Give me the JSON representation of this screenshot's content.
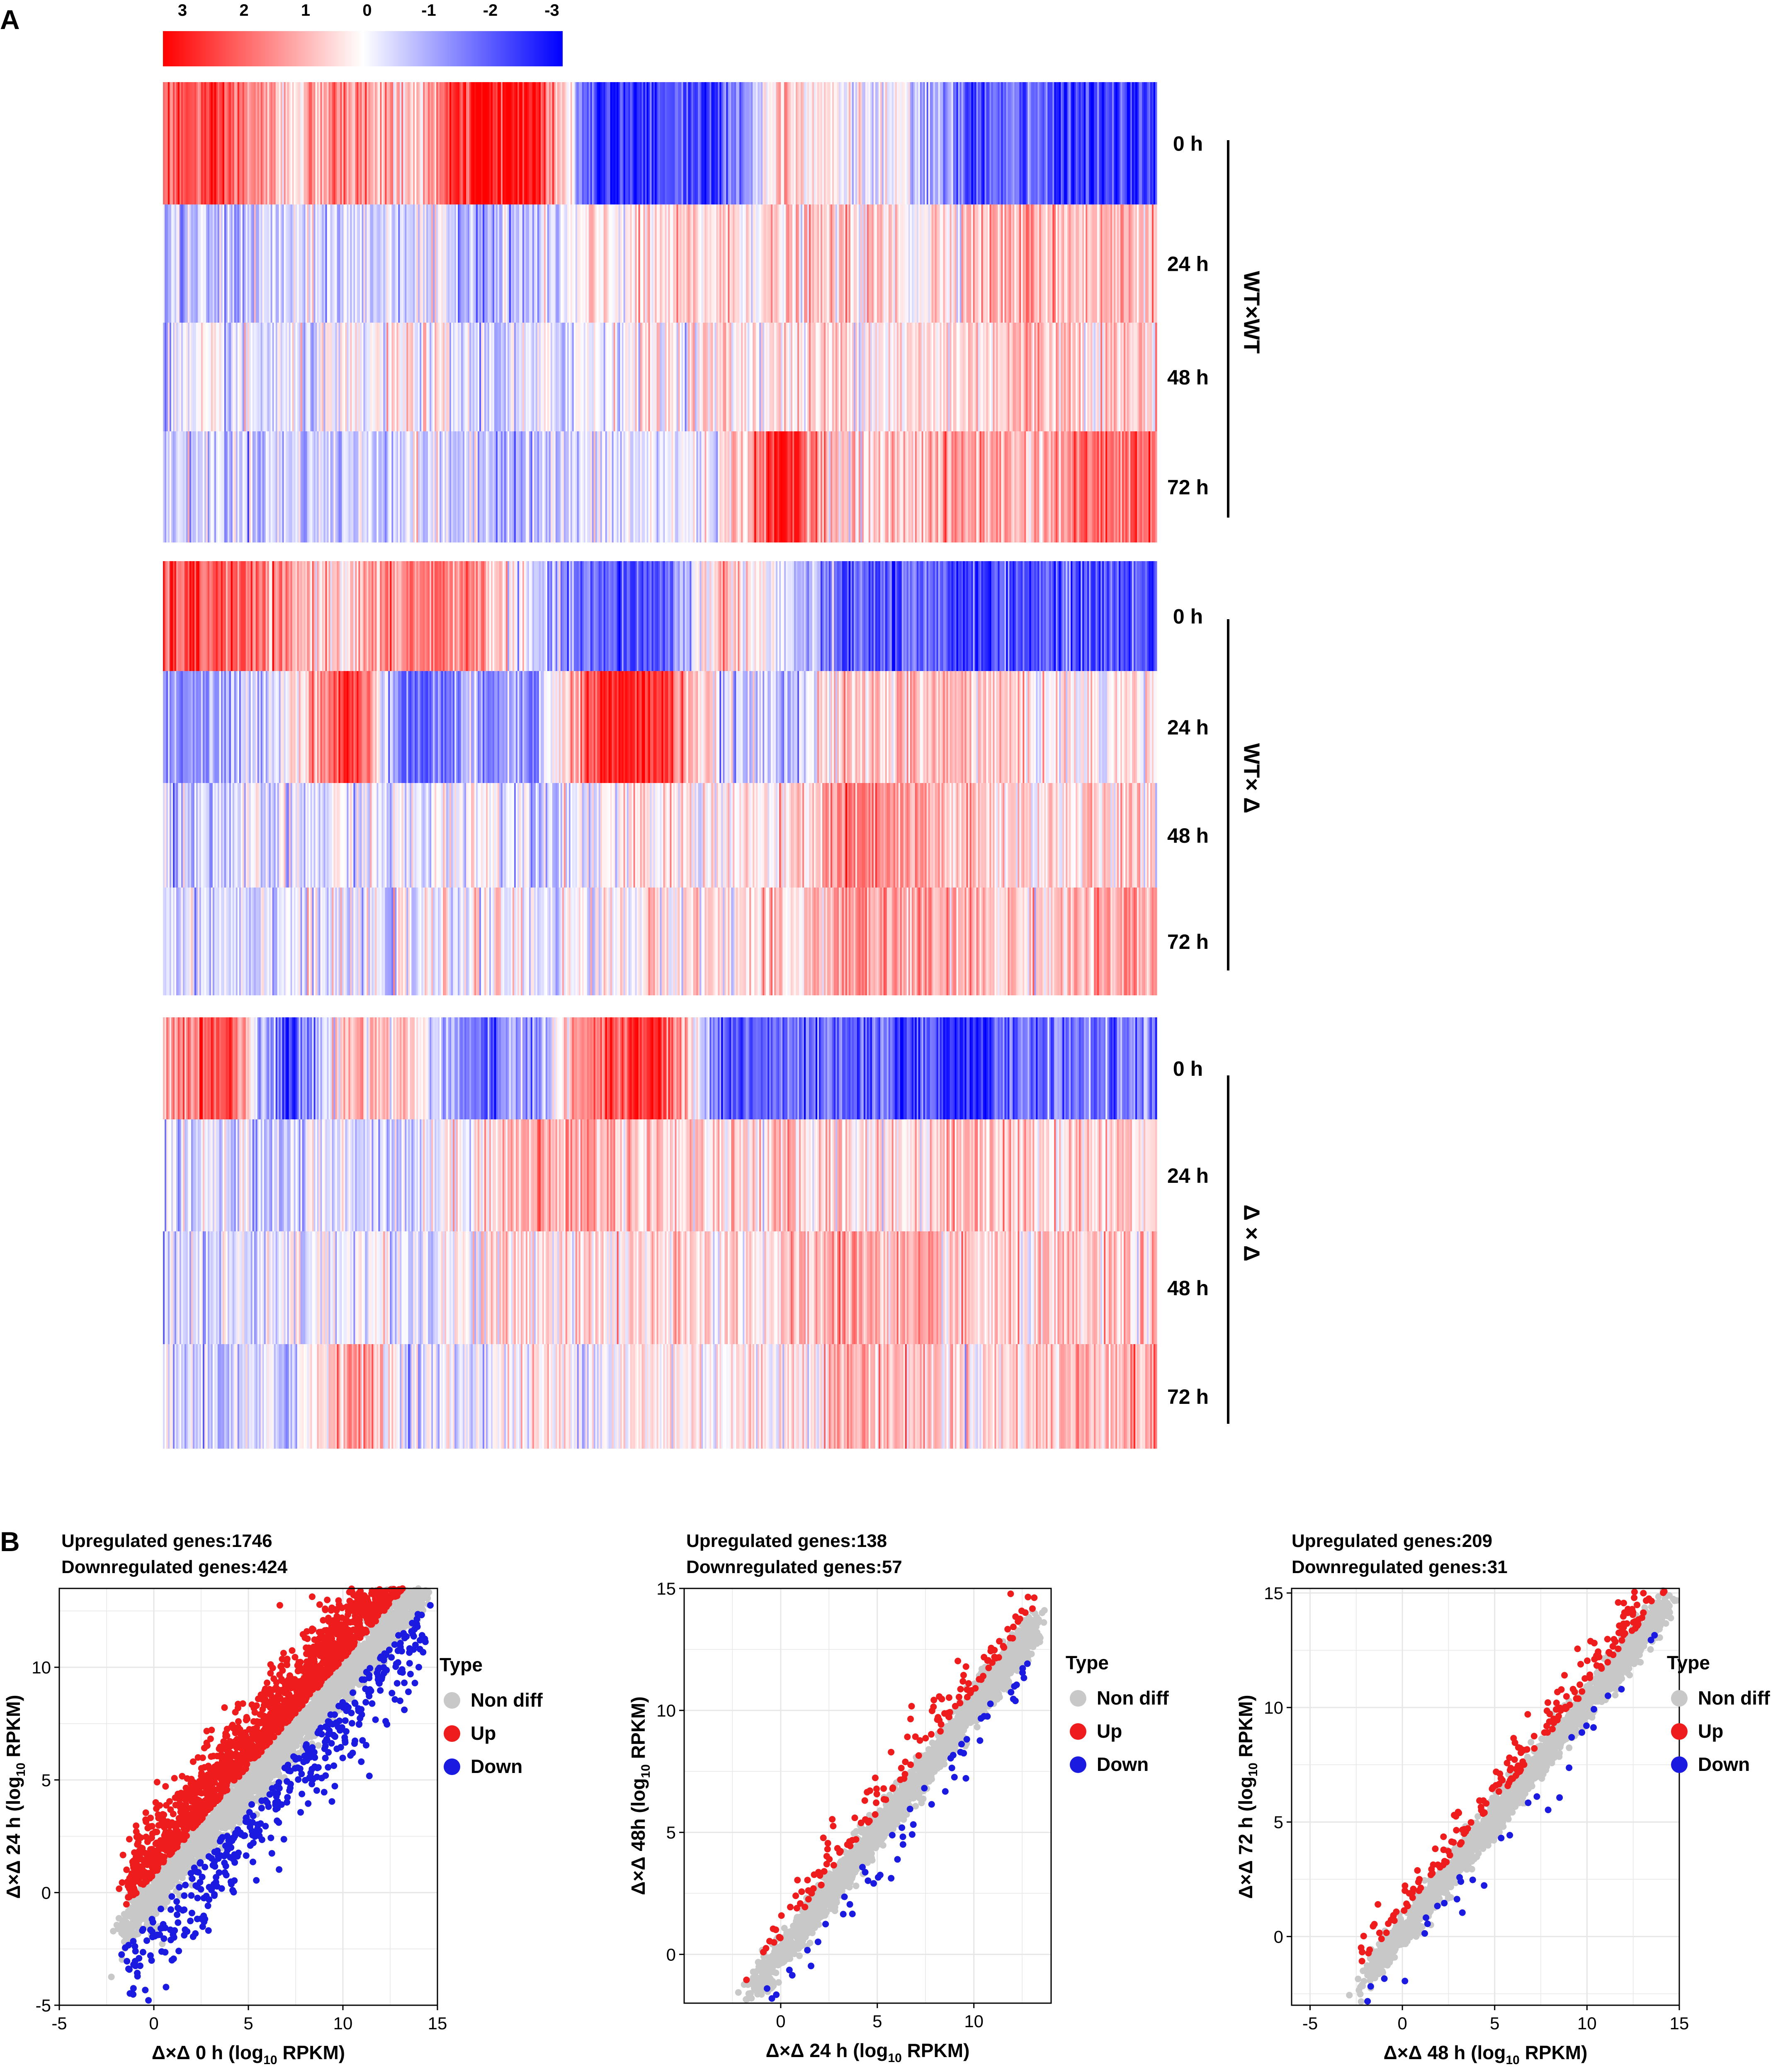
{
  "panel_labels": {
    "a": "A",
    "b": "B"
  },
  "colors": {
    "up": "#ee1c1c",
    "down": "#1a1ae0",
    "nondiff": "#c8c8c8",
    "grid": "#e6e6e6",
    "white": "#ffffff"
  },
  "chart_data": [
    {
      "type": "heatmap",
      "colorbar": {
        "ticks": [
          "3",
          "2",
          "1",
          "0",
          "-1",
          "-2",
          "-3"
        ],
        "range": [
          -3,
          3
        ]
      },
      "groups": [
        {
          "name": "WT×WT",
          "rows": [
            "0 h",
            "24 h",
            "48 h",
            "72 h"
          ],
          "profile": [
            [
              2.0,
              2.0,
              0.5,
              1.5,
              0.5,
              2.8,
              2.8,
              -2.5,
              -2.0,
              -2.2,
              1.0,
              0.0,
              -0.5,
              -2.0,
              -1.8,
              -2.5,
              -2.2
            ],
            [
              -0.8,
              -0.8,
              -0.5,
              -0.5,
              -0.3,
              -0.8,
              -0.8,
              0.2,
              0.3,
              0.5,
              0.4,
              0.6,
              0.2,
              0.8,
              1.0,
              0.8,
              0.9
            ],
            [
              -0.4,
              -0.4,
              -0.4,
              -0.3,
              0.2,
              -0.5,
              -0.5,
              0.0,
              0.2,
              0.3,
              0.3,
              0.5,
              0.2,
              0.5,
              0.9,
              0.6,
              0.6
            ],
            [
              -0.5,
              -0.5,
              -0.5,
              -0.6,
              -0.2,
              -0.7,
              -0.7,
              -0.4,
              -0.3,
              0.0,
              2.8,
              0.3,
              0.8,
              1.2,
              0.8,
              1.8,
              1.6
            ]
          ]
        },
        {
          "name": "WT× Δ",
          "rows": [
            "0 h",
            "24 h",
            "48 h",
            "72 h"
          ],
          "profile": [
            [
              2.0,
              2.0,
              1.0,
              0.6,
              1.5,
              1.5,
              -0.8,
              -2.0,
              -2.0,
              1.0,
              -0.5,
              -2.0,
              -2.0,
              -2.2,
              -2.0,
              -2.0,
              -2.0
            ],
            [
              -1.2,
              -1.2,
              0.2,
              2.5,
              -2.0,
              -1.0,
              -1.0,
              2.5,
              2.5,
              -0.6,
              -0.6,
              0.5,
              0.7,
              0.8,
              0.3,
              0.0,
              0.5
            ],
            [
              -0.5,
              -0.5,
              -0.5,
              -0.2,
              -0.4,
              0.2,
              -0.4,
              0.0,
              0.2,
              0.2,
              0.1,
              1.5,
              1.0,
              0.6,
              0.4,
              0.4,
              0.4
            ],
            [
              -0.3,
              -0.3,
              -0.2,
              -0.4,
              -0.3,
              0.1,
              -0.2,
              0.0,
              0.3,
              0.4,
              0.3,
              1.2,
              1.0,
              0.8,
              0.5,
              0.9,
              0.9
            ]
          ]
        },
        {
          "name": "Δ × Δ",
          "rows": [
            "0 h",
            "24 h",
            "48 h",
            "72 h"
          ],
          "profile": [
            [
              1.0,
              2.5,
              -2.5,
              1.0,
              0.5,
              -2.0,
              -1.0,
              2.0,
              2.5,
              -2.0,
              -1.8,
              -2.0,
              -2.0,
              -2.5,
              -1.6,
              -1.6,
              -1.6
            ],
            [
              -0.5,
              -0.5,
              -0.5,
              -0.3,
              -0.4,
              0.4,
              1.0,
              1.0,
              0.6,
              0.5,
              0.5,
              0.5,
              0.3,
              1.0,
              0.5,
              0.5,
              0.6
            ],
            [
              -0.3,
              -0.4,
              -0.4,
              0.0,
              -0.3,
              0.2,
              0.4,
              0.3,
              0.3,
              0.4,
              0.4,
              1.2,
              0.7,
              0.5,
              0.3,
              0.5,
              0.5
            ],
            [
              -0.5,
              -0.6,
              -0.6,
              1.5,
              -0.4,
              -0.2,
              0.2,
              0.0,
              0.2,
              0.2,
              0.2,
              1.0,
              0.8,
              0.3,
              0.6,
              1.0,
              1.0
            ]
          ]
        }
      ]
    },
    {
      "type": "scatter",
      "title_up": "Upregulated genes:1746",
      "title_down": "Downregulated genes:424",
      "xlabel_pre": "Δ×Δ 0 h (log",
      "ylabel_pre": "Δ×Δ 24 h (log",
      "label_sub": "10",
      "label_post": " RPKM)",
      "xlim": [
        -5,
        15
      ],
      "ylim": [
        -5,
        13.5
      ],
      "xticks": [
        -5,
        0,
        5,
        10,
        15
      ],
      "yticks": [
        -5,
        0,
        5,
        10
      ],
      "legend": {
        "title": "Type",
        "items": [
          "Non diff",
          "Up",
          "Down"
        ]
      },
      "diagonal": [
        [
          -1.5,
          -1.5
        ],
        [
          14.3,
          13.6
        ]
      ],
      "n_up": 1746,
      "n_down": 424,
      "n_nondiff": 2600,
      "spread": [
        0.55,
        1.3,
        1.5
      ]
    },
    {
      "type": "scatter",
      "title_up": "Upregulated genes:138",
      "title_down": "Downregulated genes:57",
      "xlabel_pre": "Δ×Δ 24 h (log",
      "ylabel_pre": "Δ×Δ 48h  (log",
      "label_sub": "10",
      "label_post": " RPKM)",
      "xlim": [
        -5,
        14
      ],
      "ylim": [
        -2,
        15
      ],
      "xticks": [
        0,
        5,
        10
      ],
      "yticks": [
        0,
        5,
        10,
        15
      ],
      "legend": {
        "title": "Type",
        "items": [
          "Non diff",
          "Up",
          "Down"
        ]
      },
      "diagonal": [
        [
          -1.5,
          -1.5
        ],
        [
          13.0,
          13.2
        ]
      ],
      "n_up": 138,
      "n_down": 57,
      "n_nondiff": 2200,
      "spread": [
        0.4,
        0.8,
        0.9
      ]
    },
    {
      "type": "scatter",
      "title_up": "Upregulated genes:209",
      "title_down": "Downregulated genes:31",
      "xlabel_pre": "Δ×Δ 48 h (log",
      "ylabel_pre": "Δ×Δ 72 h (log",
      "label_sub": "10",
      "label_post": " RPKM)",
      "xlim": [
        -6,
        15
      ],
      "ylim": [
        -3,
        15.2
      ],
      "xticks": [
        -5,
        0,
        5,
        10,
        15
      ],
      "yticks": [
        0,
        5,
        10,
        15
      ],
      "legend": {
        "title": "Type",
        "items": [
          "Non diff",
          "Up",
          "Down"
        ]
      },
      "diagonal": [
        [
          -2.0,
          -1.8
        ],
        [
          14.3,
          14.5
        ]
      ],
      "n_up": 209,
      "n_down": 31,
      "n_nondiff": 2200,
      "spread": [
        0.4,
        0.8,
        0.9
      ]
    }
  ]
}
